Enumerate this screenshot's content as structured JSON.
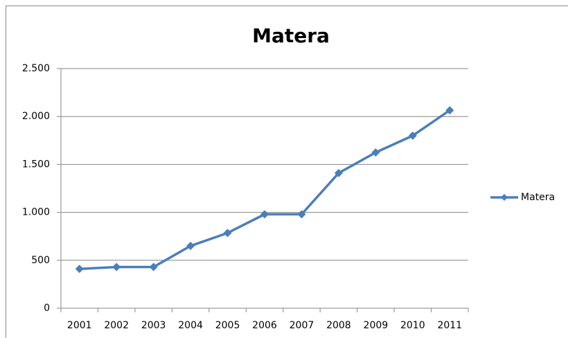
{
  "chart_data": {
    "type": "line",
    "title": "Matera",
    "categories": [
      "2001",
      "2002",
      "2003",
      "2004",
      "2005",
      "2006",
      "2007",
      "2008",
      "2009",
      "2010",
      "2011"
    ],
    "series": [
      {
        "name": "Matera",
        "color": "#4a7ebb",
        "values": [
          410,
          430,
          430,
          650,
          785,
          980,
          980,
          1410,
          1625,
          1800,
          2065
        ]
      }
    ],
    "ylim": [
      0,
      2500
    ],
    "yticks": [
      0,
      500,
      {
        "value": 1000,
        "label": "1.000"
      },
      {
        "value": 1500,
        "label": "1.500"
      },
      {
        "value": 2000,
        "label": "2.000"
      },
      {
        "value": 2500,
        "label": "2.500"
      }
    ],
    "grid": true,
    "legend": "right"
  }
}
